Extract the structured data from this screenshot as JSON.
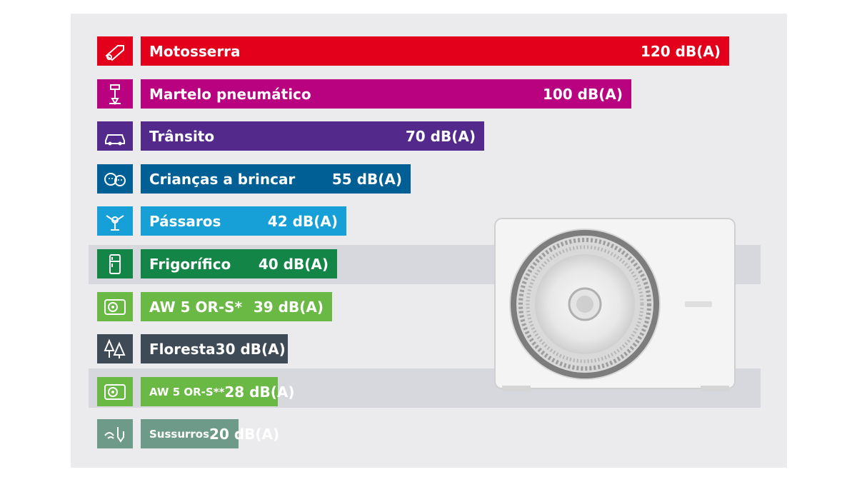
{
  "chart_data": {
    "type": "bar",
    "orientation": "horizontal",
    "unit": "dB(A)",
    "bars": [
      {
        "label": "Motosserra",
        "value": 120,
        "value_label": "120 dB(A)",
        "color": "#e3001b",
        "icon": "chainsaw-icon"
      },
      {
        "label": "Martelo pneumático",
        "value": 100,
        "value_label": "100 dB(A)",
        "color": "#b90280",
        "icon": "jackhammer-icon"
      },
      {
        "label": "Trânsito",
        "value": 70,
        "value_label": "70 dB(A)",
        "color": "#532a8b",
        "icon": "car-icon"
      },
      {
        "label": "Crianças a brincar",
        "value": 55,
        "value_label": "55 dB(A)",
        "color": "#005f95",
        "icon": "children-icon"
      },
      {
        "label": "Pássaros",
        "value": 42,
        "value_label": "42 dB(A)",
        "color": "#17a0d8",
        "icon": "bird-icon"
      },
      {
        "label": "Frigorífico",
        "value": 40,
        "value_label": "40 dB(A)",
        "color": "#138547",
        "icon": "fridge-icon",
        "highlight": true
      },
      {
        "label": "AW 5 OR-S*",
        "value": 39,
        "value_label": "39 dB(A)",
        "color": "#6ab944",
        "icon": "heat-pump-icon"
      },
      {
        "label": "Floresta",
        "value": 30,
        "value_label": "30 dB(A)",
        "color": "#3f4a57",
        "icon": "forest-icon"
      },
      {
        "label": "AW 5 OR-S**",
        "value": 28,
        "value_label": "28 dB(A)",
        "color": "#6ab944",
        "icon": "heat-pump-icon",
        "highlight": true,
        "small_label": true
      },
      {
        "label": "Sussurros",
        "value": 20,
        "value_label": "20 dB(A)",
        "color": "#6e9b89",
        "icon": "whisper-icon",
        "small_label": true
      }
    ]
  },
  "product_image": {
    "icon": "outdoor-heat-pump-unit-icon"
  }
}
